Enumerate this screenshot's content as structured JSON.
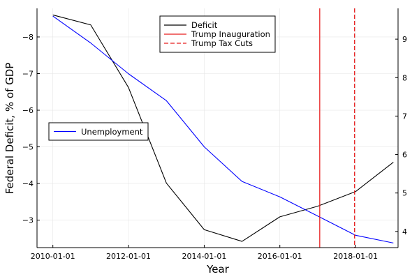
{
  "chart_data": {
    "type": "line",
    "xlabel": "Year",
    "ylabel": "Federal Deficit, % of GDP",
    "x_type": "date",
    "x_ticks": [
      "2010-01-01",
      "2012-01-01",
      "2014-01-01",
      "2016-01-01",
      "2018-01-01"
    ],
    "xlim": [
      "2009-08-01",
      "2019-02-15"
    ],
    "y_left_ticks": [
      -8,
      -7,
      -6,
      -5,
      -4,
      -3
    ],
    "y_left_tick_labels": [
      "−8",
      "−7",
      "−6",
      "−5",
      "−4",
      "−3"
    ],
    "y_left_lim": [
      -2.25,
      -8.78
    ],
    "y_left_inverted": true,
    "y_right_ticks": [
      4,
      5,
      6,
      7,
      8,
      9
    ],
    "y_right_lim": [
      3.58,
      9.8
    ],
    "grid": true,
    "legend_upper": {
      "placement": "top-center",
      "entries": [
        "Deficit",
        "Trump Inauguration",
        "Trump Tax Cuts"
      ]
    },
    "legend_lower": {
      "placement": "middle-left",
      "entries": [
        "Unemployment"
      ]
    },
    "series": [
      {
        "name": "Deficit",
        "axis": "left",
        "color": "#000000",
        "x": [
          "2010-01-01",
          "2011-01-01",
          "2012-01-01",
          "2013-01-01",
          "2014-01-01",
          "2015-01-01",
          "2016-01-01",
          "2017-01-01",
          "2018-01-01",
          "2019-01-01"
        ],
        "values": [
          -8.6,
          -8.33,
          -6.62,
          -4.01,
          -2.74,
          -2.42,
          -3.09,
          -3.38,
          -3.78,
          -4.58
        ]
      },
      {
        "name": "Unemployment",
        "axis": "right",
        "color": "#0000ff",
        "x": [
          "2010-01-01",
          "2011-01-01",
          "2012-01-01",
          "2013-01-01",
          "2014-01-01",
          "2015-01-01",
          "2016-01-01",
          "2017-01-01",
          "2018-01-01",
          "2019-01-01"
        ],
        "values": [
          9.6,
          8.9,
          8.1,
          7.4,
          6.2,
          5.3,
          4.9,
          4.4,
          3.9,
          3.7
        ]
      }
    ],
    "vlines": [
      {
        "name": "Trump Inauguration",
        "x": "2017-01-20",
        "color": "#e81e1e",
        "style": "solid"
      },
      {
        "name": "Trump Tax Cuts",
        "x": "2017-12-22",
        "color": "#e81e1e",
        "style": "dashed"
      }
    ]
  }
}
